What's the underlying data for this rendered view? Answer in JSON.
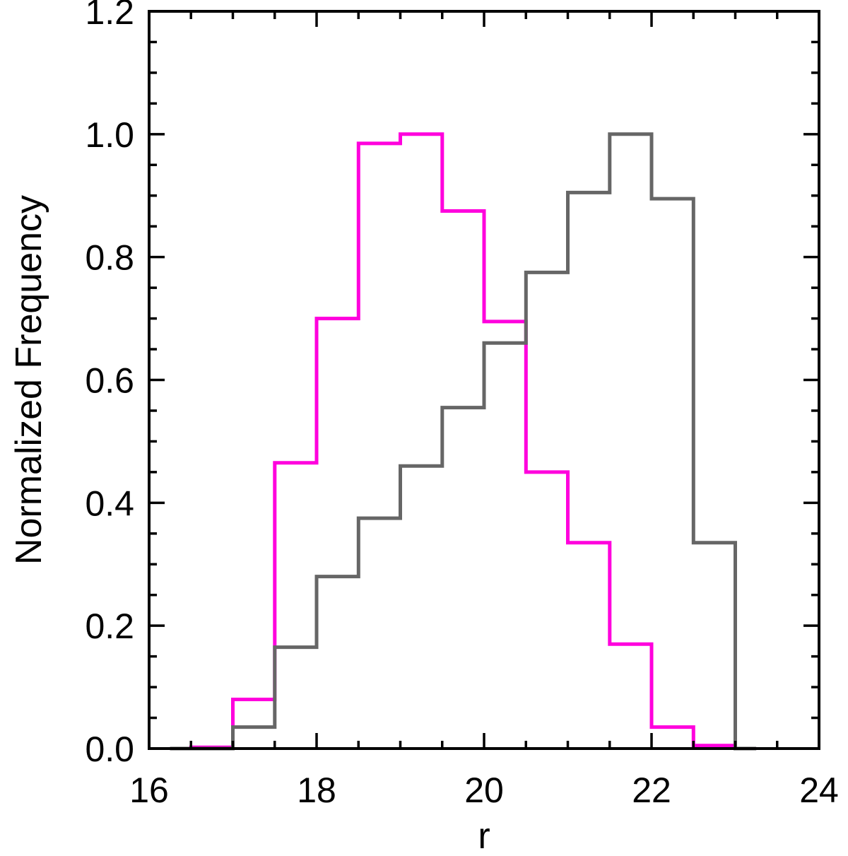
{
  "chart_data": {
    "type": "line",
    "title": "",
    "xlabel": "r",
    "ylabel": "Normalized Frequency",
    "xlim": [
      16,
      24
    ],
    "ylim": [
      0.0,
      1.2
    ],
    "xticks": [
      16,
      18,
      20,
      22,
      24
    ],
    "xtick_labels": [
      "16",
      "18",
      "20",
      "22",
      "24"
    ],
    "yticks": [
      0.0,
      0.2,
      0.4,
      0.6,
      0.8,
      1.0,
      1.2
    ],
    "ytick_labels": [
      "0.0",
      "0.2",
      "0.4",
      "0.6",
      "0.8",
      "1.0",
      "1.2"
    ],
    "grid": false,
    "bin_edges": [
      16.25,
      16.5,
      17.0,
      17.5,
      18.0,
      18.5,
      19.0,
      19.5,
      20.0,
      20.5,
      21.0,
      21.5,
      22.0,
      22.5,
      23.0,
      23.25
    ],
    "series": [
      {
        "color": "#ff00dd",
        "values": [
          0.0,
          0.002,
          0.08,
          0.465,
          0.7,
          0.985,
          1.0,
          0.875,
          0.695,
          0.45,
          0.335,
          0.17,
          0.035,
          0.005,
          0.0
        ]
      },
      {
        "color": "#666666",
        "values": [
          0.0,
          0.0,
          0.035,
          0.165,
          0.28,
          0.375,
          0.46,
          0.555,
          0.66,
          0.775,
          0.905,
          1.0,
          0.895,
          0.335,
          0.0
        ]
      }
    ]
  }
}
